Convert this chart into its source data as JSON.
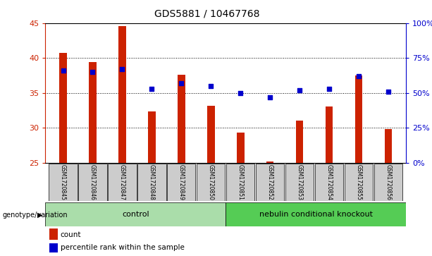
{
  "title": "GDS5881 / 10467768",
  "samples": [
    "GSM1720845",
    "GSM1720846",
    "GSM1720847",
    "GSM1720848",
    "GSM1720849",
    "GSM1720850",
    "GSM1720851",
    "GSM1720852",
    "GSM1720853",
    "GSM1720854",
    "GSM1720855",
    "GSM1720856"
  ],
  "counts": [
    40.7,
    39.4,
    44.6,
    32.3,
    37.6,
    33.1,
    29.3,
    25.2,
    31.0,
    33.0,
    37.5,
    29.8
  ],
  "percentiles": [
    66,
    65,
    67,
    53,
    57,
    55,
    50,
    47,
    52,
    53,
    62,
    51
  ],
  "ylim_left": [
    25,
    45
  ],
  "ylim_right": [
    0,
    100
  ],
  "yticks_left": [
    25,
    30,
    35,
    40,
    45
  ],
  "yticks_right": [
    0,
    25,
    50,
    75,
    100
  ],
  "yticklabels_right": [
    "0%",
    "25%",
    "50%",
    "75%",
    "100%"
  ],
  "bar_color": "#cc2200",
  "dot_color": "#0000cc",
  "control_label": "control",
  "knockout_label": "nebulin conditional knockout",
  "control_color": "#aaddaa",
  "knockout_color": "#55cc55",
  "genotype_label": "genotype/variation",
  "legend_count": "count",
  "legend_percentile": "percentile rank within the sample",
  "n_control": 6,
  "n_knockout": 6,
  "bar_bottom": 25
}
